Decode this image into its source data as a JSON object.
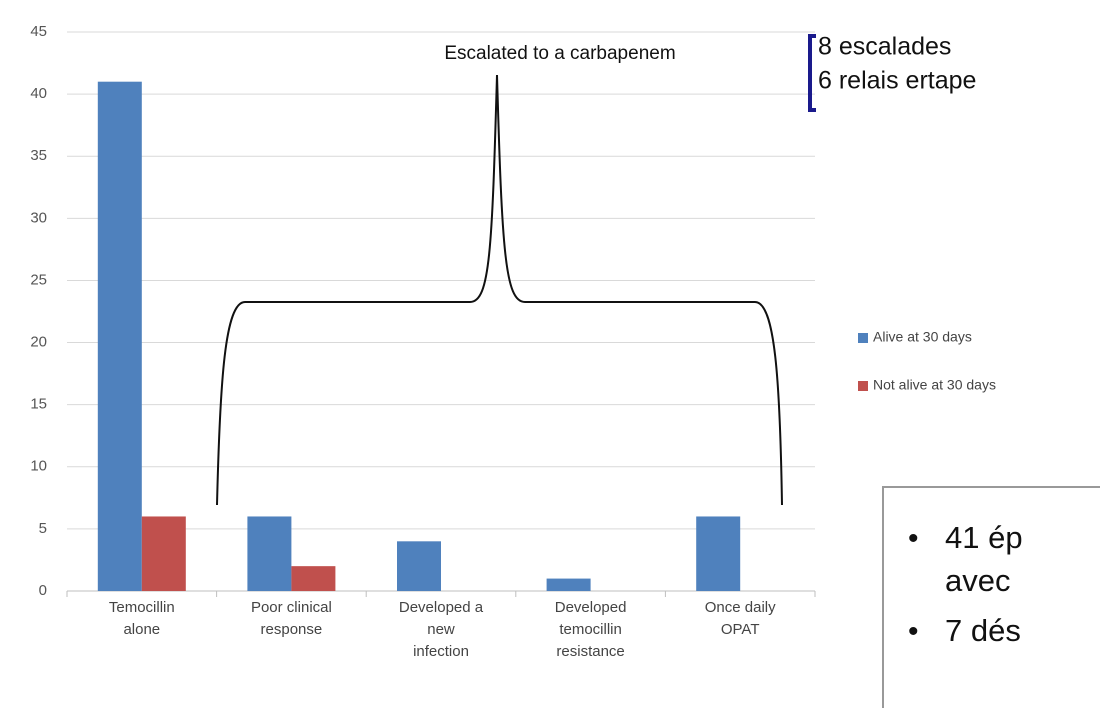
{
  "chart_data": {
    "type": "bar",
    "categories": [
      [
        "Temocillin",
        "alone"
      ],
      [
        "Poor clinical",
        "response"
      ],
      [
        "Developed a",
        "new",
        "infection"
      ],
      [
        "Developed",
        "temocillin",
        "resistance"
      ],
      [
        "Once daily",
        "OPAT"
      ]
    ],
    "series": [
      {
        "name": "Alive at 30 days",
        "color": "#4f81bd",
        "values": [
          41,
          6,
          4,
          1,
          6
        ]
      },
      {
        "name": "Not alive at 30 days",
        "color": "#c0504d",
        "values": [
          6,
          2,
          0,
          0,
          0
        ]
      }
    ],
    "ylim": [
      0,
      45
    ],
    "yticks": [
      0,
      5,
      10,
      15,
      20,
      25,
      30,
      35,
      40,
      45
    ],
    "grid": true,
    "annotation": "Escalated to a carbapenem"
  },
  "overlay": {
    "top_lines": [
      "8 escalades",
      "6 relais ertape"
    ],
    "bullets": [
      [
        "41 ép",
        "avec"
      ],
      [
        "7 dés"
      ]
    ]
  }
}
